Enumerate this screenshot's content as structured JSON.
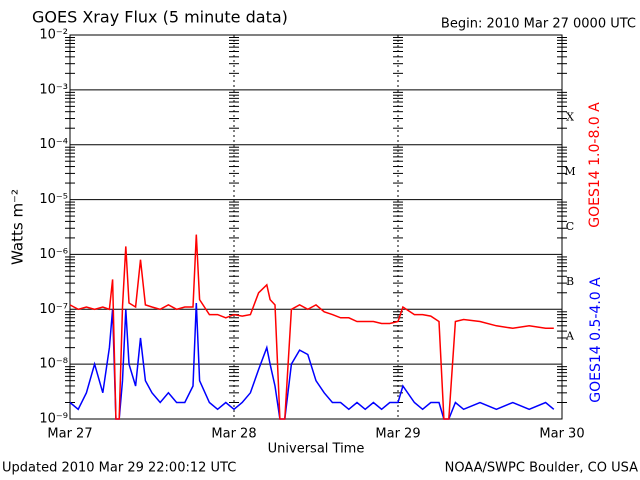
{
  "chart_data": {
    "type": "line",
    "title": "GOES Xray Flux (5 minute data)",
    "subtitle": "Begin:  2010 Mar 27 0000 UTC",
    "ylabel": "Watts m⁻²",
    "xlabel": "Universal Time",
    "footer_left": "Updated 2010 Mar 29 22:00:12 UTC",
    "footer_right": "NOAA/SWPC Boulder, CO USA",
    "flare_classes": [
      "X",
      "M",
      "C",
      "B",
      "A"
    ],
    "log_scale": true,
    "grid": true,
    "xlim": [
      0,
      3
    ],
    "xticks": [
      {
        "value": 0,
        "label": "Mar 27"
      },
      {
        "value": 1,
        "label": "Mar 28"
      },
      {
        "value": 2,
        "label": "Mar 29"
      },
      {
        "value": 3,
        "label": "Mar 30"
      }
    ],
    "ylim": [
      1e-09,
      0.01
    ],
    "yticks": [
      {
        "value": 1e-09,
        "label": "10⁻⁹"
      },
      {
        "value": 1e-08,
        "label": "10⁻⁸"
      },
      {
        "value": 1e-07,
        "label": "10⁻⁷"
      },
      {
        "value": 1e-06,
        "label": "10⁻⁶"
      },
      {
        "value": 1e-05,
        "label": "10⁻⁵"
      },
      {
        "value": 0.0001,
        "label": "10⁻⁴"
      },
      {
        "value": 0.001,
        "label": "10⁻³"
      },
      {
        "value": 0.01,
        "label": "10⁻²"
      }
    ],
    "x": [
      0.0,
      0.05,
      0.1,
      0.15,
      0.2,
      0.24,
      0.26,
      0.28,
      0.3,
      0.32,
      0.34,
      0.36,
      0.4,
      0.43,
      0.46,
      0.5,
      0.55,
      0.6,
      0.65,
      0.7,
      0.75,
      0.77,
      0.79,
      0.85,
      0.9,
      0.95,
      1.0,
      1.05,
      1.1,
      1.15,
      1.2,
      1.22,
      1.25,
      1.28,
      1.31,
      1.35,
      1.4,
      1.45,
      1.5,
      1.55,
      1.6,
      1.65,
      1.7,
      1.75,
      1.8,
      1.85,
      1.9,
      1.95,
      2.0,
      2.03,
      2.1,
      2.15,
      2.2,
      2.25,
      2.28,
      2.31,
      2.35,
      2.4,
      2.5,
      2.6,
      2.7,
      2.8,
      2.9,
      2.95
    ],
    "series": [
      {
        "name": "GOES14 1.0-8.0 A",
        "color": "#ff0000",
        "values": [
          1.2e-07,
          1e-07,
          1.1e-07,
          1e-07,
          1.1e-07,
          1e-07,
          3.5e-07,
          1e-09,
          1e-09,
          1.1e-07,
          1.4e-06,
          1.3e-07,
          1.1e-07,
          8e-07,
          1.2e-07,
          1.1e-07,
          1e-07,
          1.2e-07,
          1e-07,
          1.1e-07,
          1.1e-07,
          2.3e-06,
          1.5e-07,
          8e-08,
          8e-08,
          7e-08,
          8e-08,
          7.5e-08,
          8e-08,
          2e-07,
          2.8e-07,
          1.5e-07,
          1.2e-07,
          1e-09,
          1e-09,
          1e-07,
          1.2e-07,
          1e-07,
          1.2e-07,
          9e-08,
          8e-08,
          7e-08,
          7e-08,
          6e-08,
          6e-08,
          6e-08,
          5.5e-08,
          5.5e-08,
          6e-08,
          1.1e-07,
          8e-08,
          8e-08,
          7.5e-08,
          6e-08,
          1e-09,
          1e-09,
          6e-08,
          6.5e-08,
          6e-08,
          5e-08,
          4.5e-08,
          5e-08,
          4.5e-08,
          4.5e-08
        ]
      },
      {
        "name": "GOES14 0.5-4.0 A",
        "color": "#0000ff",
        "values": [
          2e-09,
          1.5e-09,
          3e-09,
          1e-08,
          3e-09,
          2e-08,
          1e-07,
          1e-09,
          1e-09,
          5e-09,
          1e-07,
          1e-08,
          4e-09,
          3e-08,
          5e-09,
          3e-09,
          2e-09,
          3e-09,
          2e-09,
          2e-09,
          4e-09,
          1.3e-07,
          5e-09,
          2e-09,
          1.5e-09,
          2e-09,
          1.5e-09,
          2e-09,
          3e-09,
          8e-09,
          2e-08,
          1e-08,
          4e-09,
          1e-09,
          1e-09,
          1e-08,
          1.8e-08,
          1.5e-08,
          5e-09,
          3e-09,
          2e-09,
          2e-09,
          1.5e-09,
          2e-09,
          1.5e-09,
          2e-09,
          1.5e-09,
          2e-09,
          2e-09,
          4e-09,
          2e-09,
          1.5e-09,
          2e-09,
          2e-09,
          1e-09,
          1e-09,
          2e-09,
          1.5e-09,
          2e-09,
          1.5e-09,
          2e-09,
          1.5e-09,
          2e-09,
          1.5e-09
        ]
      }
    ]
  }
}
